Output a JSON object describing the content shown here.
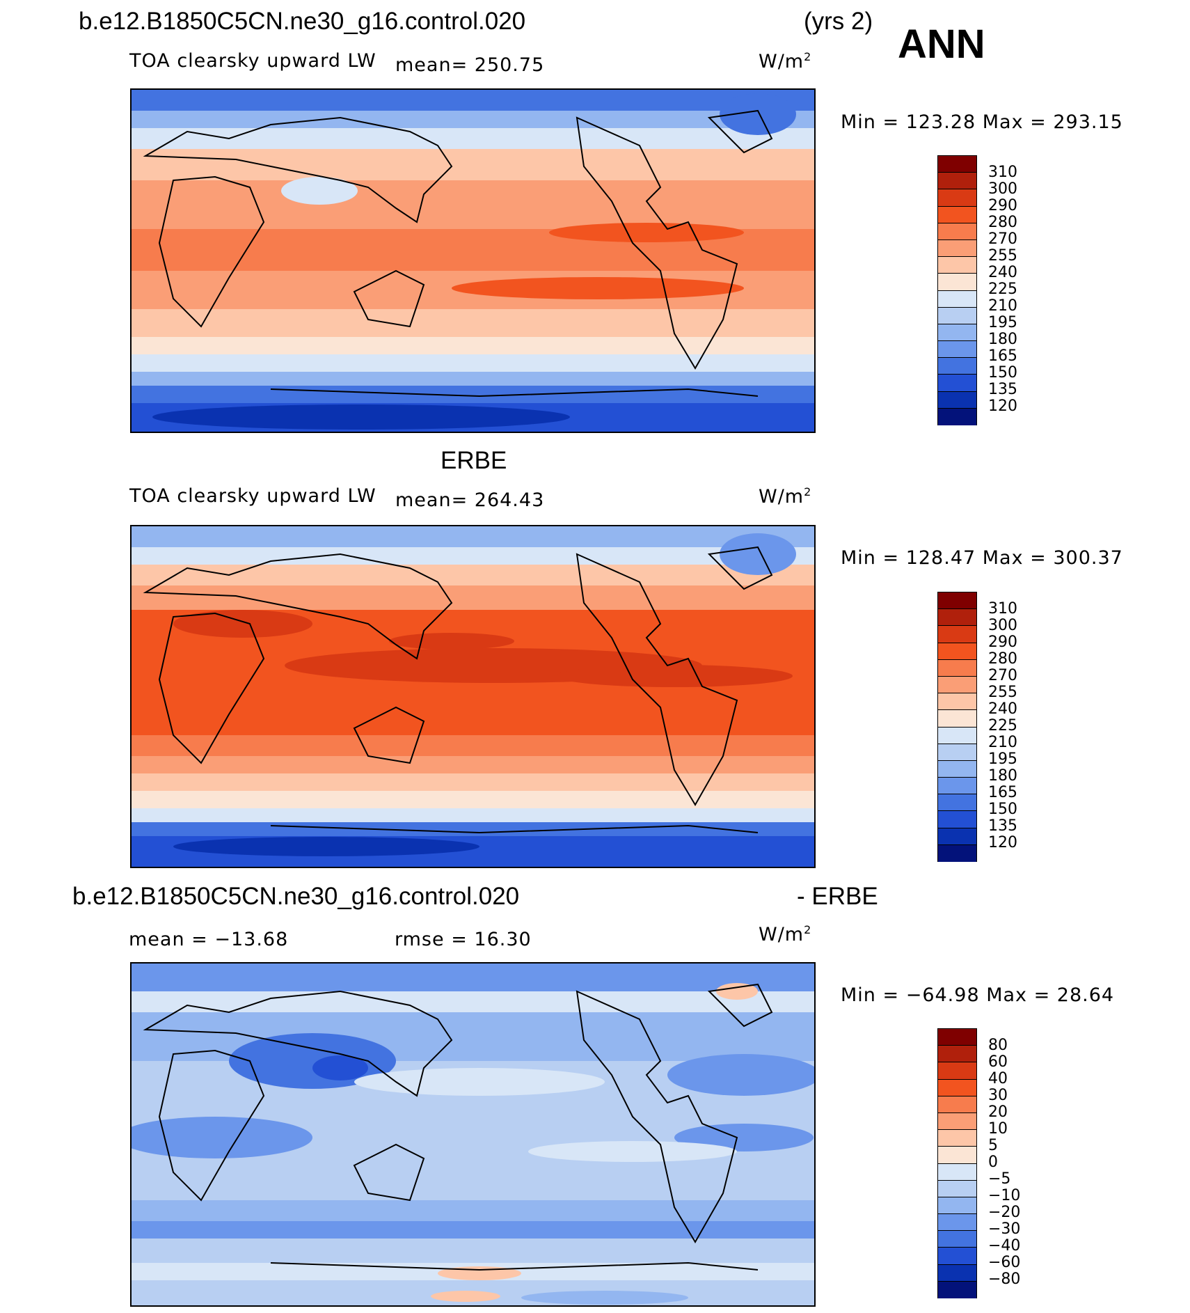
{
  "header": {
    "case": "b.e12.B1850C5CN.ne30_g16.control.020",
    "years": "(yrs 2)",
    "season": "ANN"
  },
  "units": "W/m",
  "units_sup": "2",
  "panels": [
    {
      "id": "model",
      "title": "",
      "field": "TOA clearsky upward LW",
      "mean_label": "mean= 250.75",
      "minmax": "Min = 123.28 Max = 293.15",
      "colorbar": [
        "310",
        "300",
        "290",
        "280",
        "270",
        "255",
        "240",
        "225",
        "210",
        "195",
        "180",
        "165",
        "150",
        "135",
        "120"
      ]
    },
    {
      "id": "obs",
      "title": "ERBE",
      "field": "TOA clearsky upward LW",
      "mean_label": "mean= 264.43",
      "minmax": "Min = 128.47 Max = 300.37",
      "colorbar": [
        "310",
        "300",
        "290",
        "280",
        "270",
        "255",
        "240",
        "225",
        "210",
        "195",
        "180",
        "165",
        "150",
        "135",
        "120"
      ]
    },
    {
      "id": "diff",
      "title": "b.e12.B1850C5CN.ne30_g16.control.020",
      "title_right": "- ERBE",
      "mean_label": "mean = −13.68",
      "rmse_label": "rmse =  16.30",
      "minmax": "Min = −64.98 Max =  28.64",
      "colorbar": [
        "80",
        "60",
        "40",
        "30",
        "20",
        "10",
        "5",
        "0",
        "−5",
        "−10",
        "−20",
        "−30",
        "−40",
        "−60",
        "−80"
      ]
    }
  ],
  "colors": {
    "scale": [
      "#7f0000",
      "#b0200c",
      "#d93a14",
      "#f2541f",
      "#f77c4d",
      "#fa9e76",
      "#fdc6a8",
      "#fbe5d5",
      "#d8e6f7",
      "#b8cff2",
      "#93b6f0",
      "#6b96eb",
      "#4373e0",
      "#2350d4",
      "#0a32b0",
      "#03127a"
    ]
  }
}
